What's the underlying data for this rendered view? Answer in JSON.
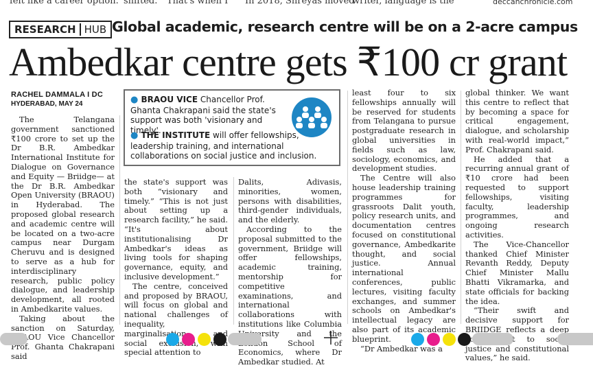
{
  "top_strip": [
    "felt like a career option.",
    "shifted.",
    "That's when I",
    "In 2018, Shreyas moved",
    "writer, language is the",
    "deccanchronicle.com"
  ],
  "kicker": {
    "section": "RESEARCH",
    "hub": "HUB"
  },
  "subheadline": "Global academic, research centre will be on a 2-acre campus",
  "headline": "Ambedkar centre gets ₹100 cr grant",
  "byline": "RACHEL DAMMALA I DC",
  "dateline": "HYDERABAD, MAY 24",
  "highlight_box": {
    "item1_lead": "BRAOU VICE",
    "item1_text": "Chancellor Prof. Ghanta Chakrapani said the state's support was both 'visionary and timely'.",
    "item2_lead": "THE INSTITUTE",
    "item2_text": "will offer fellowships, leadership training, and international collaborations on social justice and inclusion.",
    "icon": "people-group-icon",
    "accent_color": "#1e86c4"
  },
  "columns": {
    "col1": [
      "The Telangana government sanctioned ₹100 crore to set up the Dr B.R. Ambedkar International Institute for Dialogue on Governance and Equity — Briidge— at the Dr B.R. Ambedkar Open University (BRAOU) in Hyderabad. The proposed global research and academic centre will be located on a two-acre campus near Durgam Cheruvu and is designed to serve as a hub for interdisciplinary research, public policy dialogue, and leadership development, all rooted in Ambedkarite values.",
      "Taking about the sanction on Saturday, BRAOU Vice Chancellor Prof. Ghanta Chakrapani said"
    ],
    "col2": [
      "the state's support was both “visionary and timely.” “This is not just about setting up a research facility,” he said. “It's about institutionalising Dr Ambedkar's ideas as living tools for shaping governance, equity, and inclusive development.”",
      "The centre, conceived and proposed by BRAOU, will focus on global and national challenges of inequality, marginalisation, and social exclusion, with special attention to"
    ],
    "col3": [
      "Dalits, Adivasis, minorities, women, persons with disabilities, third-gender individuals, and the elderly.",
      "According to the proposal submitted to the government, Briidge will offer fellowships, academic training, mentorship for competitive examinations, and international collaborations with institutions like Columbia University and the London School of Economics, where Dr Ambedkar studied. At"
    ],
    "col4": [
      "least four to six fellowships annually will be reserved for students from Telangana to pursue postgraduate research in global universities in fields such as law, sociology, economics, and development studies.",
      "The Centre will also house leadership training programmes for grassroots Dalit youth, policy research units, and documentation centres focused on constitutional governance, Ambedkarite thought, and social justice. Annual international conferences, public lectures, visiting faculty exchanges, and summer schools on Ambedkar's intellectual legacy are also part of its academic blueprint.",
      "“Dr Ambedkar was a"
    ],
    "col5": [
      "global thinker. We want this centre to reflect that by becoming a space for critical engagement, dialogue, and scholarship with real-world impact,” Prof. Chakrapani said.",
      "He added that a recurring annual grant of ₹10 crore had been requested to support fellowships, visiting faculty, leadership programmes, and ongoing research activities.",
      "The Vice-Chancellor thanked Chief Minister Revanth Reddy, Deputy Chief Minister Mallu Bhatti Vikramarka, and state officials for backing the idea.",
      "“Their swift and decisive support for BRIIDGE reflects a deep commitment to social justice and constitutional values,” he said."
    ]
  },
  "print_marks": {
    "colors": [
      "#1aa9e8",
      "#e81d8c",
      "#f5e20b",
      "#1a1a1a"
    ],
    "bar_color": "#c8c8c8"
  }
}
